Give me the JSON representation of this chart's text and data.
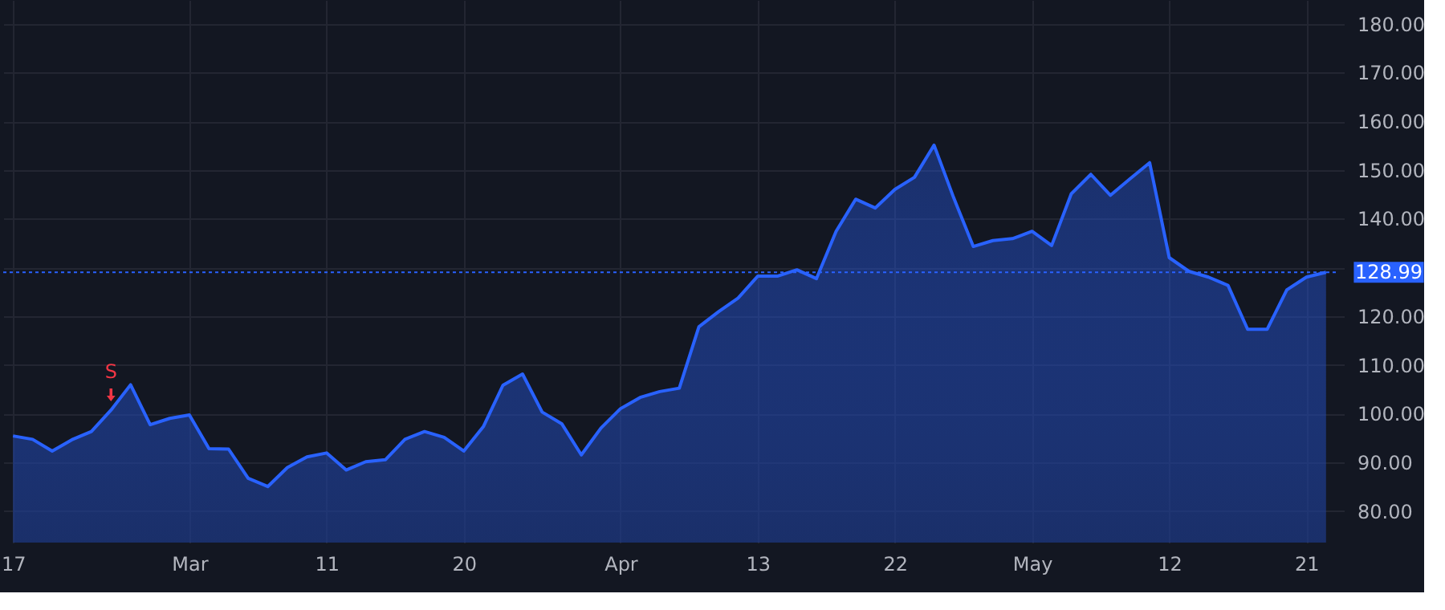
{
  "chart_data": {
    "type": "area",
    "categories": [
      "17",
      null,
      null,
      null,
      null,
      null,
      null,
      null,
      null,
      "Mar",
      null,
      null,
      null,
      null,
      null,
      null,
      "11",
      null,
      null,
      null,
      null,
      null,
      null,
      "20",
      null,
      null,
      null,
      null,
      null,
      null,
      null,
      "Apr",
      null,
      null,
      null,
      null,
      null,
      null,
      "13",
      null,
      null,
      null,
      null,
      null,
      null,
      "22",
      null,
      null,
      null,
      null,
      null,
      null,
      "May",
      null,
      null,
      null,
      null,
      null,
      null,
      "12",
      null,
      null,
      null,
      null,
      null,
      null,
      "21",
      null
    ],
    "series": [
      {
        "color": "#2962ff",
        "values": [
          95.4,
          94.7,
          92.3,
          94.6,
          96.3,
          100.7,
          105.9,
          97.7,
          99.0,
          99.7,
          92.8,
          92.7,
          86.7,
          85.0,
          88.9,
          91.1,
          91.9,
          88.4,
          90.1,
          90.5,
          94.7,
          96.3,
          95.1,
          92.3,
          97.3,
          105.8,
          108.1,
          100.3,
          97.9,
          91.5,
          97.0,
          101.0,
          103.3,
          104.5,
          105.2,
          117.8,
          120.9,
          123.7,
          128.2,
          128.2,
          129.5,
          127.7,
          137.4,
          144.0,
          142.2,
          146.0,
          148.5,
          155.1,
          144.3,
          134.3,
          135.5,
          135.9,
          137.4,
          134.5,
          145.1,
          149.1,
          144.8,
          148.2,
          151.5,
          132.0,
          129.2,
          128.0,
          126.3,
          117.3,
          117.3,
          125.4,
          128.0,
          128.99
        ]
      }
    ],
    "ylim": [
      73.5,
      184.9
    ],
    "yticks": [
      {
        "value": 80,
        "label": "80.00"
      },
      {
        "value": 90,
        "label": "90.00"
      },
      {
        "value": 100,
        "label": "100.00"
      },
      {
        "value": 110,
        "label": "110.00"
      },
      {
        "value": 120,
        "label": "120.00"
      },
      {
        "value": 130,
        "label": null
      },
      {
        "value": 140,
        "label": "140.00"
      },
      {
        "value": 150,
        "label": "150.00"
      },
      {
        "value": 160,
        "label": "160.00"
      },
      {
        "value": 170,
        "label": "170.00"
      },
      {
        "value": 180,
        "label": "180.00"
      }
    ],
    "ref_lines": [
      {
        "axis": "y",
        "value": 128.99,
        "label": "128.99",
        "color": "#2962ff",
        "line_style": "dotted"
      }
    ],
    "annotations": [
      {
        "text": "S",
        "y": 100.7
      }
    ],
    "grid": true,
    "marker": "none",
    "line_style": "solid"
  }
}
